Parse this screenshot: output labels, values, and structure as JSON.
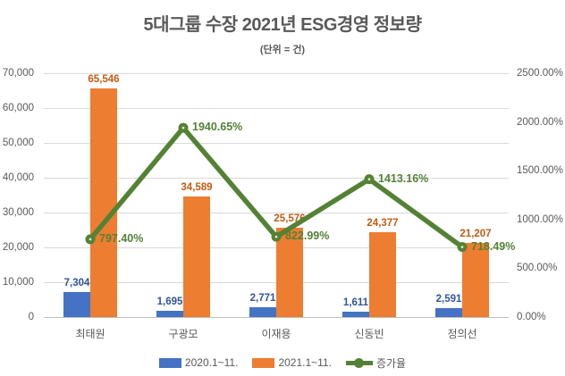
{
  "title": "5대그룹 수장 2021년 ESG경영 정보량",
  "subtitle": "(단위 = 건)",
  "colors": {
    "bar_2020": "#4472c4",
    "bar_2021": "#ed7d31",
    "line_rate": "#548235",
    "label_2020": "#2f5597",
    "label_2021": "#c55a11",
    "label_rate": "#538135",
    "marker_center_dot": "#eff3da",
    "axis_text": "#595959",
    "gridline": "#d9d9d9",
    "axis_line": "#bfbfbf"
  },
  "chart_data": {
    "type": "bar+line combo",
    "title": "5대그룹 수장 2021년 ESG경영 정보량",
    "subtitle": "(단위 = 건)",
    "categories": [
      "최태원",
      "구광모",
      "이재용",
      "신동빈",
      "정의선"
    ],
    "series": [
      {
        "name": "2020.1~11.",
        "type": "bar",
        "axis": "left",
        "values": [
          7304,
          1695,
          2771,
          1611,
          2591
        ],
        "labels": [
          "7,304",
          "1,695",
          "2,771",
          "1,611",
          "2,591"
        ]
      },
      {
        "name": "2021.1~11.",
        "type": "bar",
        "axis": "left",
        "values": [
          65546,
          34589,
          25576,
          24377,
          21207
        ],
        "labels": [
          "65,546",
          "34,589",
          "25,576",
          "24,377",
          "21,207"
        ]
      },
      {
        "name": "증가율",
        "type": "line",
        "axis": "right",
        "values": [
          797.4,
          1940.65,
          822.99,
          1413.16,
          718.49
        ],
        "labels": [
          "797.40%",
          "1940.65%",
          "822.99%",
          "1413.16%",
          "718.49%"
        ]
      }
    ],
    "left_axis": {
      "min": 0,
      "max": 70000,
      "step": 10000,
      "tick_labels": [
        "0",
        "10,000",
        "20,000",
        "30,000",
        "40,000",
        "50,000",
        "60,000",
        "70,000"
      ]
    },
    "right_axis": {
      "min": 0,
      "max": 2500,
      "step": 500,
      "tick_labels": [
        "0.00%",
        "500.00%",
        "1000.00%",
        "1500.00%",
        "2000.00%",
        "2500.00%"
      ]
    },
    "grid": true,
    "legend_position": "bottom",
    "legend": [
      "2020.1~11.",
      "2021.1~11.",
      "증가율"
    ]
  }
}
